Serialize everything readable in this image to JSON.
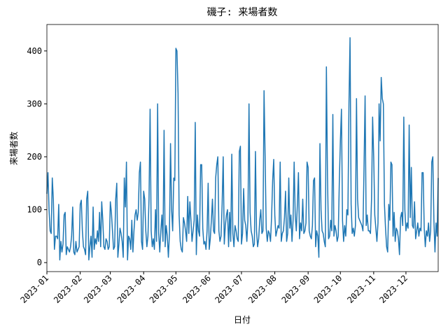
{
  "chart_data": {
    "type": "line",
    "title": "磯子: 来場者数",
    "x_label": "日付",
    "y_label": "来場者数",
    "color": "#1f77b4",
    "xlim": [
      0,
      364
    ],
    "ylim": [
      -17,
      450
    ],
    "xticks": [
      {
        "value": 0,
        "label": "2023-01"
      },
      {
        "value": 31,
        "label": "2023-02"
      },
      {
        "value": 59,
        "label": "2023-03"
      },
      {
        "value": 90,
        "label": "2023-04"
      },
      {
        "value": 120,
        "label": "2023-05"
      },
      {
        "value": 151,
        "label": "2023-06"
      },
      {
        "value": 181,
        "label": "2023-07"
      },
      {
        "value": 212,
        "label": "2023-08"
      },
      {
        "value": 243,
        "label": "2023-09"
      },
      {
        "value": 273,
        "label": "2023-10"
      },
      {
        "value": 304,
        "label": "2023-11"
      },
      {
        "value": 334,
        "label": "2023-12"
      }
    ],
    "yticks": [
      0,
      100,
      200,
      300,
      400
    ],
    "values": [
      130,
      170,
      100,
      60,
      55,
      160,
      120,
      25,
      50,
      50,
      45,
      110,
      5,
      40,
      20,
      35,
      90,
      95,
      15,
      30,
      25,
      20,
      30,
      50,
      105,
      20,
      15,
      40,
      20,
      25,
      30,
      110,
      118,
      60,
      30,
      25,
      15,
      120,
      135,
      5,
      30,
      50,
      10,
      105,
      25,
      45,
      35,
      60,
      40,
      95,
      30,
      115,
      80,
      30,
      25,
      45,
      40,
      25,
      30,
      115,
      95,
      60,
      25,
      30,
      120,
      150,
      10,
      35,
      65,
      55,
      40,
      10,
      160,
      105,
      190,
      5,
      50,
      45,
      25,
      80,
      20,
      60,
      90,
      100,
      80,
      95,
      170,
      190,
      40,
      25,
      135,
      120,
      60,
      30,
      50,
      120,
      290,
      60,
      30,
      45,
      25,
      100,
      40,
      300,
      55,
      20,
      60,
      90,
      40,
      250,
      30,
      70,
      50,
      10,
      55,
      225,
      100,
      60,
      160,
      155,
      405,
      400,
      320,
      90,
      40,
      25,
      20,
      85,
      75,
      60,
      40,
      125,
      55,
      115,
      80,
      40,
      60,
      80,
      265,
      15,
      90,
      60,
      50,
      185,
      185,
      65,
      35,
      40,
      25,
      60,
      150,
      25,
      45,
      80,
      120,
      60,
      55,
      160,
      185,
      200,
      60,
      40,
      50,
      110,
      200,
      35,
      70,
      90,
      100,
      30,
      95,
      40,
      205,
      55,
      30,
      70,
      60,
      45,
      40,
      210,
      220,
      35,
      55,
      140,
      80,
      70,
      40,
      80,
      300,
      95,
      60,
      50,
      30,
      35,
      210,
      60,
      30,
      45,
      80,
      100,
      55,
      60,
      325,
      200,
      65,
      40,
      60,
      55,
      40,
      85,
      155,
      195,
      90,
      50,
      60,
      70,
      65,
      190,
      40,
      55,
      60,
      85,
      135,
      40,
      55,
      160,
      65,
      90,
      40,
      80,
      190,
      90,
      60,
      110,
      170,
      45,
      75,
      60,
      120,
      55,
      60,
      75,
      190,
      180,
      60,
      50,
      45,
      70,
      155,
      160,
      30,
      60,
      50,
      10,
      225,
      100,
      60,
      55,
      40,
      30,
      370,
      165,
      45,
      50,
      80,
      60,
      280,
      50,
      70,
      60,
      40,
      50,
      150,
      230,
      290,
      80,
      40,
      70,
      50,
      100,
      90,
      300,
      425,
      110,
      55,
      65,
      50,
      70,
      310,
      120,
      85,
      80,
      75,
      70,
      60,
      180,
      315,
      70,
      90,
      60,
      60,
      55,
      120,
      275,
      200,
      90,
      65,
      40,
      75,
      300,
      230,
      350,
      310,
      300,
      110,
      65,
      30,
      20,
      110,
      80,
      190,
      185,
      50,
      95,
      40,
      65,
      60,
      45,
      15,
      85,
      95,
      70,
      275,
      100,
      60,
      75,
      65,
      260,
      85,
      180,
      70,
      65,
      115,
      45,
      60,
      75,
      50,
      65,
      60,
      170,
      170,
      65,
      30,
      60,
      50,
      75,
      40,
      60,
      190,
      200,
      80,
      20,
      75,
      50,
      160
    ]
  }
}
